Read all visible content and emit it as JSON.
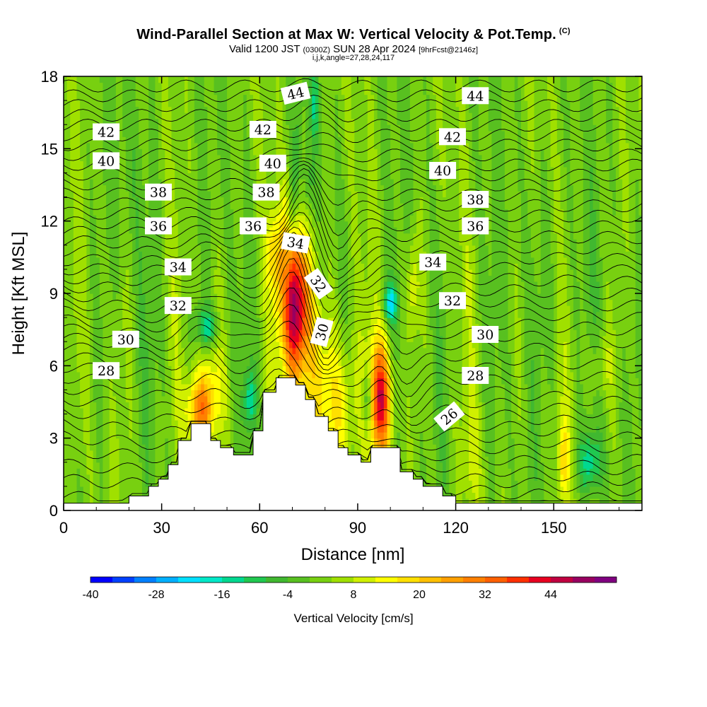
{
  "header": {
    "title_main": "Wind-Parallel Section at Max W: Vertical Velocity & Pot.Temp.",
    "title_mark": "(C)",
    "subtitle_prefix": "Valid 1200 JST",
    "subtitle_utc": "(0300Z)",
    "subtitle_date": "SUN 28 Apr 2024",
    "subtitle_fcst": "[9hrFcst@2146z]",
    "indices": "i,j,k,angle=27,28,24,117"
  },
  "chart_data": {
    "type": "heatmap",
    "title": "Wind-Parallel Section at Max W: Vertical Velocity & Pot.Temp.",
    "xlabel": "Distance [nm]",
    "ylabel": "Height [Kft MSL]",
    "xlim": [
      0,
      177
    ],
    "ylim": [
      0,
      18
    ],
    "xticks": [
      0,
      30,
      60,
      90,
      120,
      150
    ],
    "yticks": [
      0,
      3,
      6,
      9,
      12,
      15,
      18
    ],
    "colorbar": {
      "label": "Vertical Velocity [cm/s]",
      "ticks": [
        -40,
        -28,
        -16,
        -4,
        8,
        20,
        32,
        44
      ],
      "min": -40,
      "max": 56,
      "step": 4,
      "colors": [
        "#0000ff",
        "#0040ff",
        "#0080ff",
        "#00b0ff",
        "#00e0ff",
        "#00e8c8",
        "#00d890",
        "#20c850",
        "#40b830",
        "#58c020",
        "#78d010",
        "#a0e000",
        "#d0f000",
        "#ffff00",
        "#ffe000",
        "#ffc000",
        "#ffa000",
        "#ff8000",
        "#ff6000",
        "#ff3000",
        "#e80020",
        "#c00040",
        "#980060",
        "#800080"
      ]
    },
    "terrain_profile": [
      {
        "x": 0,
        "h": 0.3
      },
      {
        "x": 20,
        "h": 0.3
      },
      {
        "x": 20,
        "h": 0.6
      },
      {
        "x": 26,
        "h": 0.6
      },
      {
        "x": 26,
        "h": 1.0
      },
      {
        "x": 29,
        "h": 1.0
      },
      {
        "x": 29,
        "h": 1.3
      },
      {
        "x": 32,
        "h": 1.3
      },
      {
        "x": 32,
        "h": 1.9
      },
      {
        "x": 35,
        "h": 1.9
      },
      {
        "x": 35,
        "h": 2.9
      },
      {
        "x": 39,
        "h": 2.9
      },
      {
        "x": 39,
        "h": 3.6
      },
      {
        "x": 45,
        "h": 3.6
      },
      {
        "x": 45,
        "h": 2.9
      },
      {
        "x": 48,
        "h": 2.9
      },
      {
        "x": 48,
        "h": 2.6
      },
      {
        "x": 51,
        "h": 2.6
      },
      {
        "x": 51,
        "h": 2.6
      },
      {
        "x": 52,
        "h": 2.6
      },
      {
        "x": 52,
        "h": 2.3
      },
      {
        "x": 58,
        "h": 2.3
      },
      {
        "x": 58,
        "h": 3.3
      },
      {
        "x": 61,
        "h": 3.3
      },
      {
        "x": 61,
        "h": 4.9
      },
      {
        "x": 65,
        "h": 4.9
      },
      {
        "x": 65,
        "h": 5.5
      },
      {
        "x": 71,
        "h": 5.5
      },
      {
        "x": 71,
        "h": 5.2
      },
      {
        "x": 74,
        "h": 5.2
      },
      {
        "x": 74,
        "h": 4.6
      },
      {
        "x": 77,
        "h": 4.6
      },
      {
        "x": 77,
        "h": 3.9
      },
      {
        "x": 81,
        "h": 3.9
      },
      {
        "x": 81,
        "h": 3.3
      },
      {
        "x": 84,
        "h": 3.3
      },
      {
        "x": 84,
        "h": 2.6
      },
      {
        "x": 87,
        "h": 2.6
      },
      {
        "x": 87,
        "h": 2.3
      },
      {
        "x": 91,
        "h": 2.3
      },
      {
        "x": 91,
        "h": 2.0
      },
      {
        "x": 94,
        "h": 2.0
      },
      {
        "x": 94,
        "h": 2.6
      },
      {
        "x": 103,
        "h": 2.6
      },
      {
        "x": 103,
        "h": 1.6
      },
      {
        "x": 107,
        "h": 1.6
      },
      {
        "x": 107,
        "h": 1.3
      },
      {
        "x": 110,
        "h": 1.3
      },
      {
        "x": 110,
        "h": 1.0
      },
      {
        "x": 116,
        "h": 1.0
      },
      {
        "x": 116,
        "h": 0.6
      },
      {
        "x": 120,
        "h": 0.6
      },
      {
        "x": 120,
        "h": 0.3
      },
      {
        "x": 177,
        "h": 0.3
      }
    ],
    "w_features": [
      {
        "x": 71,
        "h": 8.6,
        "sx": 3.0,
        "sy": 2.2,
        "w": 50
      },
      {
        "x": 97,
        "h": 4.6,
        "sx": 2.3,
        "sy": 1.7,
        "w": 40
      },
      {
        "x": 42,
        "h": 4.2,
        "sx": 3.2,
        "sy": 1.0,
        "w": 27
      },
      {
        "x": 79,
        "h": 5.0,
        "sx": 6.0,
        "sy": 2.5,
        "w": 12
      },
      {
        "x": 85,
        "h": 4.0,
        "sx": 3.5,
        "sy": 2.0,
        "w": 10
      },
      {
        "x": 45,
        "h": 6.0,
        "sx": 3.0,
        "sy": 1.5,
        "w": 8
      },
      {
        "x": 64,
        "h": 10.8,
        "sx": 1.6,
        "sy": 1.2,
        "w": 12
      },
      {
        "x": 107,
        "h": 9.3,
        "sx": 1.4,
        "sy": 1.5,
        "w": 10
      },
      {
        "x": 153,
        "h": 2.0,
        "sx": 1.2,
        "sy": 1.2,
        "w": 15
      },
      {
        "x": 165,
        "h": 6.0,
        "sx": 3.0,
        "sy": 1.0,
        "w": 6
      },
      {
        "x": 125,
        "h": 2.0,
        "sx": 2.0,
        "sy": 1.5,
        "w": 6
      },
      {
        "x": 44,
        "h": 7.6,
        "sx": 2.5,
        "sy": 0.6,
        "w": -18
      },
      {
        "x": 100,
        "h": 8.6,
        "sx": 1.6,
        "sy": 0.6,
        "w": -20
      },
      {
        "x": 93,
        "h": 4.6,
        "sx": 1.0,
        "sy": 0.9,
        "w": -16
      },
      {
        "x": 57,
        "h": 4.6,
        "sx": 1.3,
        "sy": 0.8,
        "w": -14
      },
      {
        "x": 77,
        "h": 16.8,
        "sx": 1.0,
        "sy": 1.0,
        "w": -12
      },
      {
        "x": 75,
        "h": 13.5,
        "sx": 1.5,
        "sy": 1.0,
        "w": -6
      },
      {
        "x": 161,
        "h": 2.0,
        "sx": 2.5,
        "sy": 0.9,
        "w": -16
      },
      {
        "x": 150,
        "h": 10.0,
        "sx": 8.0,
        "sy": 3.0,
        "w": -2
      },
      {
        "x": 20,
        "h": 14.0,
        "sx": 8.0,
        "sy": 3.0,
        "w": -2
      }
    ],
    "theta_labels": [
      {
        "text": "44",
        "x": 71,
        "h": 17.3,
        "rot": -14
      },
      {
        "text": "44",
        "x": 126,
        "h": 17.2,
        "rot": 0
      },
      {
        "text": "42",
        "x": 13,
        "h": 15.7,
        "rot": 0
      },
      {
        "text": "42",
        "x": 61,
        "h": 15.8,
        "rot": 0
      },
      {
        "text": "42",
        "x": 119,
        "h": 15.5,
        "rot": 0
      },
      {
        "text": "40",
        "x": 13,
        "h": 14.5,
        "rot": 0
      },
      {
        "text": "40",
        "x": 64,
        "h": 14.4,
        "rot": 0
      },
      {
        "text": "40",
        "x": 116,
        "h": 14.1,
        "rot": 0
      },
      {
        "text": "38",
        "x": 29,
        "h": 13.2,
        "rot": 0
      },
      {
        "text": "38",
        "x": 62,
        "h": 13.2,
        "rot": 0
      },
      {
        "text": "38",
        "x": 126,
        "h": 12.9,
        "rot": 0
      },
      {
        "text": "36",
        "x": 29,
        "h": 11.8,
        "rot": 0
      },
      {
        "text": "36",
        "x": 58,
        "h": 11.8,
        "rot": 0
      },
      {
        "text": "36",
        "x": 126,
        "h": 11.8,
        "rot": 0
      },
      {
        "text": "34",
        "x": 35,
        "h": 10.1,
        "rot": 0
      },
      {
        "text": "34",
        "x": 71,
        "h": 11.1,
        "rot": 10
      },
      {
        "text": "34",
        "x": 113,
        "h": 10.3,
        "rot": 0
      },
      {
        "text": "32",
        "x": 35,
        "h": 8.5,
        "rot": 0
      },
      {
        "text": "32",
        "x": 78,
        "h": 9.4,
        "rot": 55
      },
      {
        "text": "32",
        "x": 119,
        "h": 8.7,
        "rot": 0
      },
      {
        "text": "30",
        "x": 19,
        "h": 7.1,
        "rot": 0
      },
      {
        "text": "30",
        "x": 79,
        "h": 7.4,
        "rot": -75
      },
      {
        "text": "30",
        "x": 129,
        "h": 7.3,
        "rot": 0
      },
      {
        "text": "28",
        "x": 13,
        "h": 5.8,
        "rot": 0
      },
      {
        "text": "28",
        "x": 126,
        "h": 5.6,
        "rot": 0
      },
      {
        "text": "26",
        "x": 118,
        "h": 3.9,
        "rot": -40
      }
    ],
    "theta_min": 25,
    "theta_max": 45
  }
}
